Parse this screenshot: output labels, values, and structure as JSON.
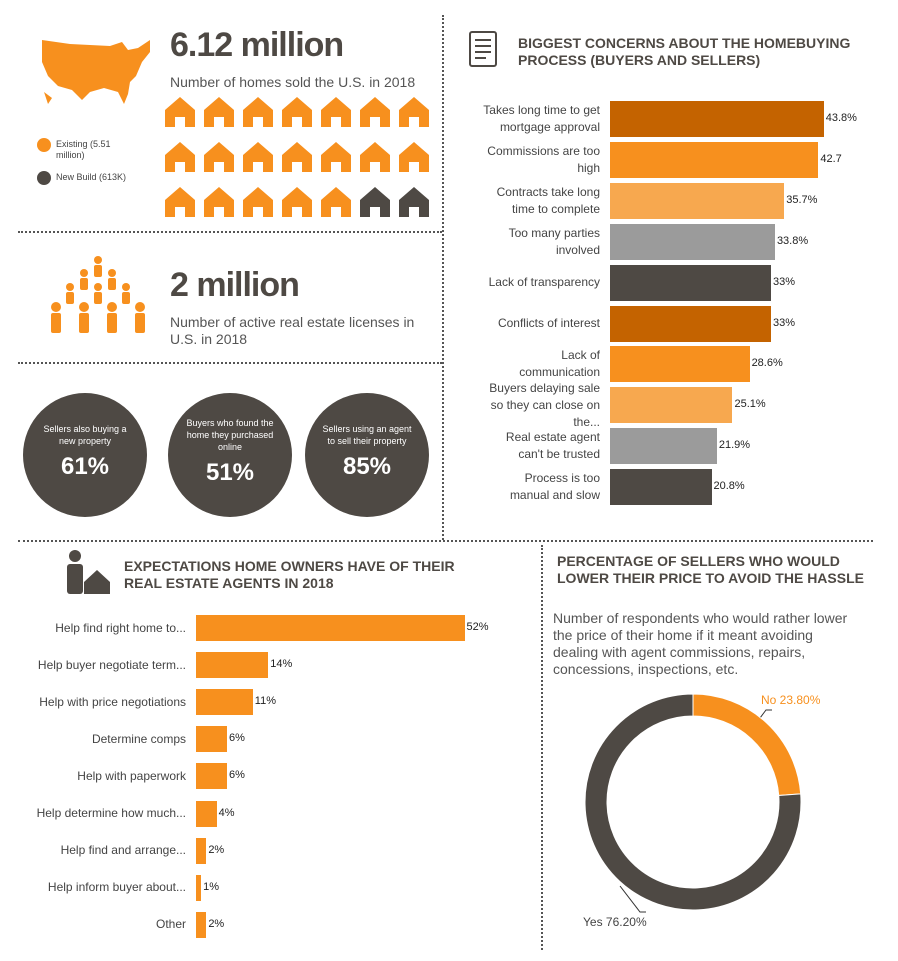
{
  "stats": [
    {
      "headline": "6.12 million",
      "text": "Number of homes sold the U.S. in 2018"
    },
    {
      "headline": "2 million",
      "text": "Number of active real estate licenses in U.S. in 2018"
    }
  ],
  "circles": [
    {
      "label": "Sellers  also  buying a new property",
      "value": "61%"
    },
    {
      "label": "Buyers who found the home they purchased online",
      "value": "51%"
    },
    {
      "label": "Sellers using an agent to sell their property",
      "value": "85%"
    }
  ],
  "chart_data": [
    {
      "type": "pictogram",
      "series": [
        {
          "name": "Existing (5.51 million)",
          "color": "#f7901e",
          "value": 19
        },
        {
          "name": "New Build (613K)",
          "color": "#4e4944",
          "value": 2
        }
      ]
    },
    {
      "type": "bar",
      "orientation": "horizontal",
      "title": "BIGGEST CONCERNS ABOUT THE HOMEBUYING PROCESS (BUYERS AND SELLERS)",
      "categories": [
        "Takes long time to get mortgage approval",
        "Commissions are too high",
        "Contracts take long time to complete",
        "Too many parties involved",
        "Lack of transparency",
        "Conflicts of interest",
        "Lack of communication",
        "Buyers delaying sale so they can close on the...",
        "Real estate agent can't be trusted",
        "Process is too manual and slow"
      ],
      "values": [
        43.8,
        42.7,
        35.7,
        33.8,
        33,
        33,
        28.6,
        25.1,
        21.9,
        20.8
      ],
      "value_labels": [
        "43.8%",
        "42.7",
        "35.7%",
        "33.8%",
        "33%",
        "33%",
        "28.6%",
        "25.1%",
        "21.9%",
        "20.8%"
      ],
      "colors": [
        "#c46300",
        "#f7901e",
        "#f7a84f",
        "#9b9b9b",
        "#4e4944",
        "#c46300",
        "#f7901e",
        "#f7a84f",
        "#9b9b9b",
        "#4e4944"
      ],
      "xlim": [
        0,
        50
      ]
    },
    {
      "type": "bar",
      "orientation": "horizontal",
      "title": "EXPECTATIONS HOME OWNERS HAVE OF THEIR REAL ESTATE AGENTS IN 2018",
      "categories": [
        "Help find right home to...",
        "Help buyer negotiate term...",
        "Help with price negotiations",
        "Determine comps",
        "Help with paperwork",
        "Help determine how much...",
        "Help find and arrange...",
        "Help inform buyer about...",
        "Other"
      ],
      "values": [
        52,
        14,
        11,
        6,
        6,
        4,
        2,
        1,
        2
      ],
      "value_labels": [
        "52%",
        "14%",
        "11%",
        "6%",
        "6%",
        "4%",
        "2%",
        "1%",
        "2%"
      ],
      "color": "#f7901e",
      "xlim": [
        0,
        55
      ]
    },
    {
      "type": "donut",
      "title": "PERCENTAGE OF SELLERS WHO WOULD LOWER THEIR PRICE TO AVOID THE HASSLE",
      "subtitle": "Number of respondents who would rather lower the price of their home if it meant avoiding dealing with agent commissions, repairs, concessions, inspections, etc.",
      "values": [
        23.8,
        76.2
      ],
      "value_labels": [
        "No 23.80%",
        "Yes 76.20%"
      ],
      "colors": [
        "#f7901e",
        "#4e4944"
      ]
    }
  ]
}
